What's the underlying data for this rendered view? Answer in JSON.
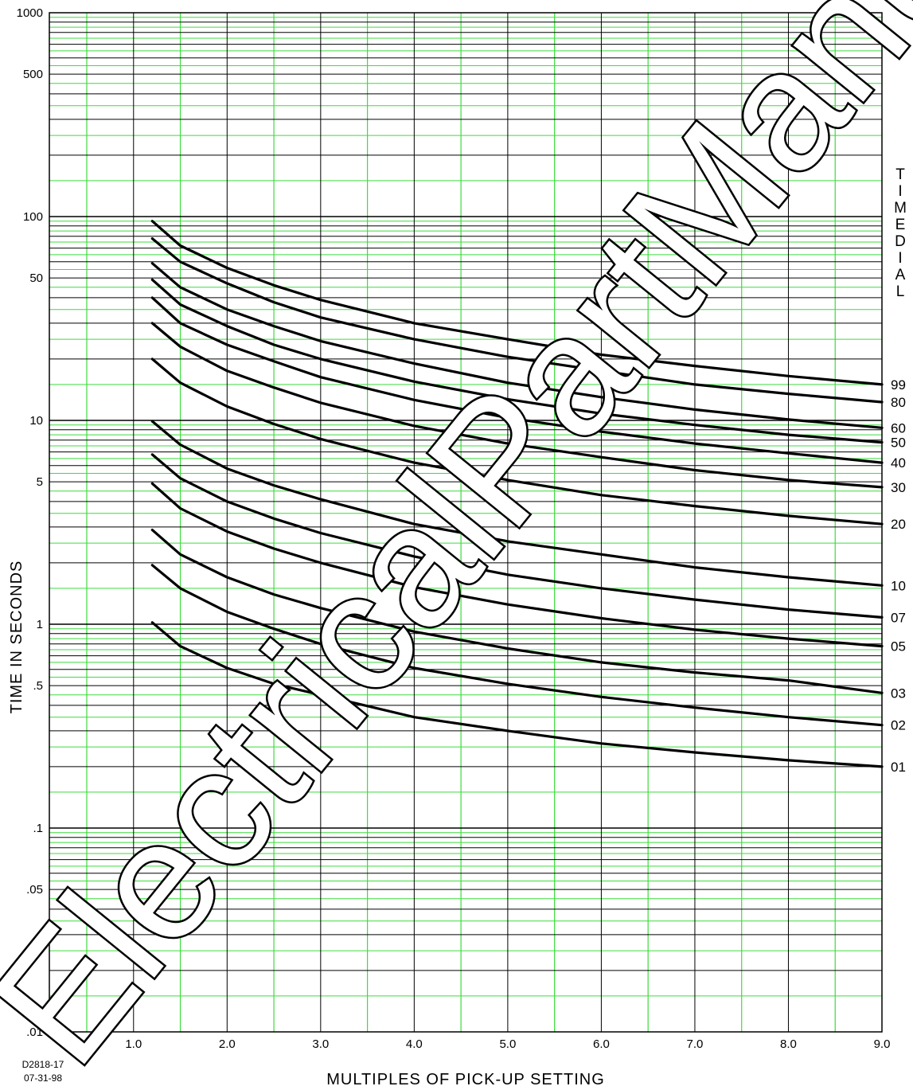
{
  "chart_data": {
    "type": "line",
    "title": "",
    "xlabel": "MULTIPLES OF PICK-UP SETTING",
    "ylabel": "TIME IN SECONDS",
    "xlim": [
      0.1,
      9.0
    ],
    "ylim": [
      0.01,
      1000
    ],
    "y_scale": "log",
    "grid": true,
    "x_ticks": [
      1.0,
      2.0,
      3.0,
      4.0,
      5.0,
      6.0,
      7.0,
      8.0,
      9.0
    ],
    "x_tick_labels": [
      "1.0",
      "2.0",
      "3.0",
      "4.0",
      "5.0",
      "6.0",
      "7.0",
      "8.0",
      "9.0"
    ],
    "y_ticks": [
      1000,
      500,
      100,
      50,
      10,
      5,
      1,
      0.5,
      0.1,
      0.05,
      0.01
    ],
    "y_tick_labels": [
      "1000",
      "500",
      "100",
      "50",
      "10",
      "5",
      "1",
      ".5",
      ".1",
      ".05",
      ".01"
    ],
    "legend_title": "TIME DIAL",
    "legend_position": "right",
    "x": [
      1.2,
      1.5,
      2.0,
      2.5,
      3.0,
      4.0,
      5.0,
      6.0,
      7.0,
      8.0,
      9.0
    ],
    "series": [
      {
        "name": "99",
        "values": [
          95,
          72,
          56,
          46,
          39,
          30,
          25,
          21,
          18.5,
          16.5,
          15
        ]
      },
      {
        "name": "80",
        "values": [
          78,
          60,
          47,
          38,
          32,
          25,
          20.5,
          17.5,
          15,
          13.5,
          12.3
        ]
      },
      {
        "name": "60",
        "values": [
          59,
          45,
          35,
          29,
          24.5,
          19,
          15.3,
          13,
          11.3,
          10.1,
          9.2
        ]
      },
      {
        "name": "50",
        "values": [
          49,
          37,
          29,
          23.5,
          20,
          15.5,
          12.7,
          10.8,
          9.5,
          8.5,
          7.8
        ]
      },
      {
        "name": "40",
        "values": [
          40,
          30,
          23.5,
          19.5,
          16.3,
          12.6,
          10.3,
          8.8,
          7.7,
          6.9,
          6.2
        ]
      },
      {
        "name": "30",
        "values": [
          30,
          23,
          17.5,
          14.5,
          12.2,
          9.4,
          7.7,
          6.6,
          5.7,
          5.1,
          4.7
        ]
      },
      {
        "name": "20",
        "values": [
          20,
          15.3,
          11.7,
          9.6,
          8.1,
          6.2,
          5.1,
          4.3,
          3.8,
          3.4,
          3.1
        ]
      },
      {
        "name": "10",
        "values": [
          9.9,
          7.6,
          5.8,
          4.8,
          4.1,
          3.1,
          2.55,
          2.2,
          1.9,
          1.7,
          1.55
        ]
      },
      {
        "name": "07",
        "values": [
          6.8,
          5.2,
          4.0,
          3.3,
          2.8,
          2.15,
          1.75,
          1.5,
          1.32,
          1.18,
          1.08
        ]
      },
      {
        "name": "05",
        "values": [
          4.9,
          3.7,
          2.85,
          2.35,
          2.0,
          1.52,
          1.25,
          1.07,
          0.94,
          0.85,
          0.78
        ]
      },
      {
        "name": "03",
        "values": [
          2.9,
          2.2,
          1.7,
          1.4,
          1.2,
          0.92,
          0.76,
          0.65,
          0.58,
          0.53,
          0.46
        ]
      },
      {
        "name": "02",
        "values": [
          1.95,
          1.5,
          1.15,
          0.95,
          0.8,
          0.61,
          0.51,
          0.44,
          0.39,
          0.35,
          0.32
        ]
      },
      {
        "name": "01",
        "values": [
          1.02,
          0.78,
          0.61,
          0.51,
          0.45,
          0.35,
          0.3,
          0.26,
          0.235,
          0.215,
          0.2
        ]
      }
    ]
  },
  "figure_code": "D2818-17",
  "figure_date": "07-31-98",
  "watermark_text": "ElectricalPartManuals ."
}
